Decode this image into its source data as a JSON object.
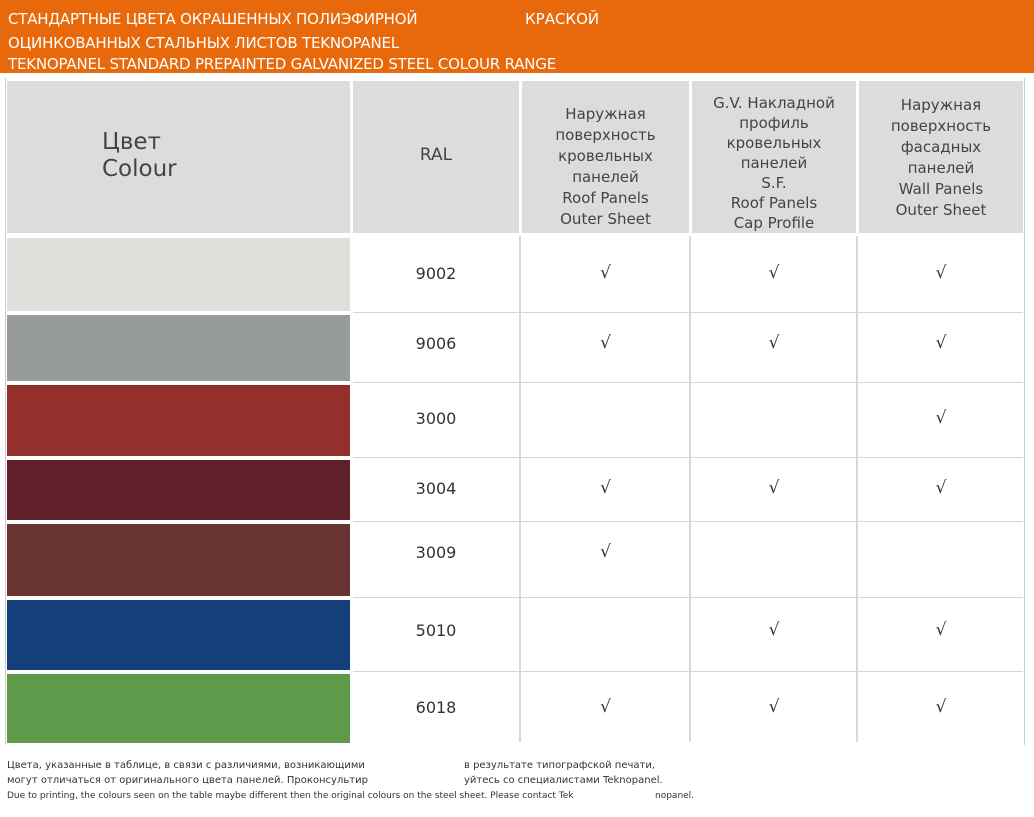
{
  "banner": {
    "line1": "СТАНДАРТНЫЕ ЦВЕТА ОКРАШЕННЫХ ПОЛИЭФИРНОЙ",
    "line1_extra": "КРАСКОЙ",
    "line2": "ОЦИНКОВАННЫХ СТАЛЬНЫХ ЛИСТОВ TEKNOPANEL",
    "line3": "TEKNOPANEL STANDARD PREPAINTED GALVANIZED STEEL COLOUR RANGE",
    "color": "#e8690b"
  },
  "header": {
    "colour_ru": "Цвет",
    "colour_en": "Colour",
    "ral": "RAL",
    "roof_outer": [
      "Наружная",
      "поверхность",
      "кровельных",
      "панелей",
      "Roof Panels",
      "Outer Sheet"
    ],
    "cap_profile": [
      "G.V. Накладной",
      "профиль",
      "кровельных",
      "панелей",
      "S.F.",
      "Roof Panels",
      "Cap Profile"
    ],
    "wall_outer": [
      "Наружная",
      "поверхность",
      "фасадных",
      "панелей",
      "Wall Panels",
      "Outer Sheet"
    ]
  },
  "rows": [
    {
      "ral": "9002",
      "swatch": "#dfe0dc",
      "roof": "√",
      "cap": "√",
      "wall": "√"
    },
    {
      "ral": "9006",
      "swatch": "#979c9b",
      "roof": "√",
      "cap": "√",
      "wall": "√"
    },
    {
      "ral": "3000",
      "swatch": "#93302c",
      "roof": "",
      "cap": "",
      "wall": "√"
    },
    {
      "ral": "3004",
      "swatch": "#5f202b",
      "roof": "√",
      "cap": "√",
      "wall": "√"
    },
    {
      "ral": "3009",
      "swatch": "#673431",
      "roof": "√",
      "cap": "",
      "wall": ""
    },
    {
      "ral": "5010",
      "swatch": "#143f7a",
      "roof": "",
      "cap": "√",
      "wall": "√"
    },
    {
      "ral": "6018",
      "swatch": "#5f9a4b",
      "roof": "√",
      "cap": "√",
      "wall": "√"
    }
  ],
  "footnote": {
    "ru1a": "Цвета, указанные в таблице, в связи с различиями, возникающими",
    "ru1b": "в результате типографской печати,",
    "ru2a": "могут отличаться от оригинального цвета панелей.  Проконсультир",
    "ru2b": "уйтесь со специалистами Teknopanel.",
    "en_a": "Due to printing, the colours seen on the table maybe different then the original colours on the steel sheet. Please contact Tek",
    "en_b": "nopanel."
  }
}
